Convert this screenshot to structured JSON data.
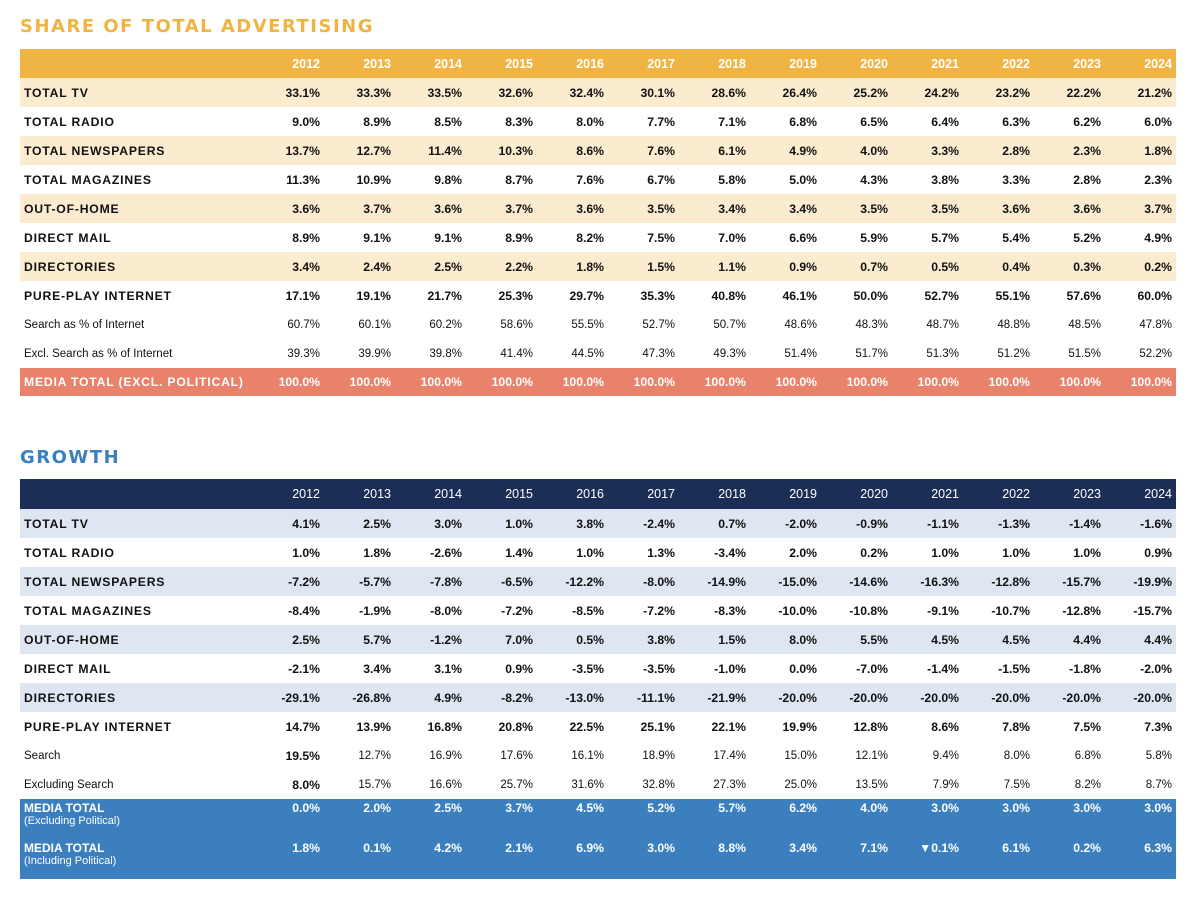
{
  "share": {
    "title": "SHARE OF TOTAL ADVERTISING",
    "years": [
      "2012",
      "2013",
      "2014",
      "2015",
      "2016",
      "2017",
      "2018",
      "2019",
      "2020",
      "2021",
      "2022",
      "2023",
      "2024"
    ],
    "rows": [
      {
        "label": "TOTAL TV",
        "values": [
          "33.1%",
          "33.3%",
          "33.5%",
          "32.6%",
          "32.4%",
          "30.1%",
          "28.6%",
          "26.4%",
          "25.2%",
          "24.2%",
          "23.2%",
          "22.2%",
          "21.2%"
        ]
      },
      {
        "label": "TOTAL RADIO",
        "values": [
          "9.0%",
          "8.9%",
          "8.5%",
          "8.3%",
          "8.0%",
          "7.7%",
          "7.1%",
          "6.8%",
          "6.5%",
          "6.4%",
          "6.3%",
          "6.2%",
          "6.0%"
        ]
      },
      {
        "label": "TOTAL NEWSPAPERS",
        "values": [
          "13.7%",
          "12.7%",
          "11.4%",
          "10.3%",
          "8.6%",
          "7.6%",
          "6.1%",
          "4.9%",
          "4.0%",
          "3.3%",
          "2.8%",
          "2.3%",
          "1.8%"
        ]
      },
      {
        "label": "TOTAL MAGAZINES",
        "values": [
          "11.3%",
          "10.9%",
          "9.8%",
          "8.7%",
          "7.6%",
          "6.7%",
          "5.8%",
          "5.0%",
          "4.3%",
          "3.8%",
          "3.3%",
          "2.8%",
          "2.3%"
        ]
      },
      {
        "label": "OUT-OF-HOME",
        "values": [
          "3.6%",
          "3.7%",
          "3.6%",
          "3.7%",
          "3.6%",
          "3.5%",
          "3.4%",
          "3.4%",
          "3.5%",
          "3.5%",
          "3.6%",
          "3.6%",
          "3.7%"
        ]
      },
      {
        "label": "DIRECT MAIL",
        "values": [
          "8.9%",
          "9.1%",
          "9.1%",
          "8.9%",
          "8.2%",
          "7.5%",
          "7.0%",
          "6.6%",
          "5.9%",
          "5.7%",
          "5.4%",
          "5.2%",
          "4.9%"
        ]
      },
      {
        "label": "DIRECTORIES",
        "values": [
          "3.4%",
          "2.4%",
          "2.5%",
          "2.2%",
          "1.8%",
          "1.5%",
          "1.1%",
          "0.9%",
          "0.7%",
          "0.5%",
          "0.4%",
          "0.3%",
          "0.2%"
        ]
      },
      {
        "label": "PURE-PLAY INTERNET",
        "values": [
          "17.1%",
          "19.1%",
          "21.7%",
          "25.3%",
          "29.7%",
          "35.3%",
          "40.8%",
          "46.1%",
          "50.0%",
          "52.7%",
          "55.1%",
          "57.6%",
          "60.0%"
        ]
      },
      {
        "label": "Search as % of Internet",
        "values": [
          "60.7%",
          "60.1%",
          "60.2%",
          "58.6%",
          "55.5%",
          "52.7%",
          "50.7%",
          "48.6%",
          "48.3%",
          "48.7%",
          "48.8%",
          "48.5%",
          "47.8%"
        ]
      },
      {
        "label": "Excl. Search as % of Internet",
        "values": [
          "39.3%",
          "39.9%",
          "39.8%",
          "41.4%",
          "44.5%",
          "47.3%",
          "49.3%",
          "51.4%",
          "51.7%",
          "51.3%",
          "51.2%",
          "51.5%",
          "52.2%"
        ]
      }
    ],
    "total": {
      "label": "MEDIA TOTAL (EXCL. POLITICAL)",
      "values": [
        "100.0%",
        "100.0%",
        "100.0%",
        "100.0%",
        "100.0%",
        "100.0%",
        "100.0%",
        "100.0%",
        "100.0%",
        "100.0%",
        "100.0%",
        "100.0%",
        "100.0%"
      ]
    }
  },
  "growth": {
    "title": "GROWTH",
    "years": [
      "2012",
      "2013",
      "2014",
      "2015",
      "2016",
      "2017",
      "2018",
      "2019",
      "2020",
      "2021",
      "2022",
      "2023",
      "2024"
    ],
    "rows": [
      {
        "label": "TOTAL TV",
        "values": [
          "4.1%",
          "2.5%",
          "3.0%",
          "1.0%",
          "3.8%",
          "-2.4%",
          "0.7%",
          "-2.0%",
          "-0.9%",
          "-1.1%",
          "-1.3%",
          "-1.4%",
          "-1.6%"
        ]
      },
      {
        "label": "TOTAL RADIO",
        "values": [
          "1.0%",
          "1.8%",
          "-2.6%",
          "1.4%",
          "1.0%",
          "1.3%",
          "-3.4%",
          "2.0%",
          "0.2%",
          "1.0%",
          "1.0%",
          "1.0%",
          "0.9%"
        ]
      },
      {
        "label": "TOTAL NEWSPAPERS",
        "values": [
          "-7.2%",
          "-5.7%",
          "-7.8%",
          "-6.5%",
          "-12.2%",
          "-8.0%",
          "-14.9%",
          "-15.0%",
          "-14.6%",
          "-16.3%",
          "-12.8%",
          "-15.7%",
          "-19.9%"
        ]
      },
      {
        "label": "TOTAL MAGAZINES",
        "values": [
          "-8.4%",
          "-1.9%",
          "-8.0%",
          "-7.2%",
          "-8.5%",
          "-7.2%",
          "-8.3%",
          "-10.0%",
          "-10.8%",
          "-9.1%",
          "-10.7%",
          "-12.8%",
          "-15.7%"
        ]
      },
      {
        "label": "OUT-OF-HOME",
        "values": [
          "2.5%",
          "5.7%",
          "-1.2%",
          "7.0%",
          "0.5%",
          "3.8%",
          "1.5%",
          "8.0%",
          "5.5%",
          "4.5%",
          "4.5%",
          "4.4%",
          "4.4%"
        ]
      },
      {
        "label": "DIRECT MAIL",
        "values": [
          "-2.1%",
          "3.4%",
          "3.1%",
          "0.9%",
          "-3.5%",
          "-3.5%",
          "-1.0%",
          "0.0%",
          "-7.0%",
          "-1.4%",
          "-1.5%",
          "-1.8%",
          "-2.0%"
        ]
      },
      {
        "label": "DIRECTORIES",
        "values": [
          "-29.1%",
          "-26.8%",
          "4.9%",
          "-8.2%",
          "-13.0%",
          "-11.1%",
          "-21.9%",
          "-20.0%",
          "-20.0%",
          "-20.0%",
          "-20.0%",
          "-20.0%",
          "-20.0%"
        ]
      },
      {
        "label": "PURE-PLAY INTERNET",
        "values": [
          "14.7%",
          "13.9%",
          "16.8%",
          "20.8%",
          "22.5%",
          "25.1%",
          "22.1%",
          "19.9%",
          "12.8%",
          "8.6%",
          "7.8%",
          "7.5%",
          "7.3%"
        ]
      },
      {
        "label": "Search",
        "values": [
          "19.5%",
          "12.7%",
          "16.9%",
          "17.6%",
          "16.1%",
          "18.9%",
          "17.4%",
          "15.0%",
          "12.1%",
          "9.4%",
          "8.0%",
          "6.8%",
          "5.8%"
        ]
      },
      {
        "label": "Excluding Search",
        "values": [
          "8.0%",
          "15.7%",
          "16.6%",
          "25.7%",
          "31.6%",
          "32.8%",
          "27.3%",
          "25.0%",
          "13.5%",
          "7.9%",
          "7.5%",
          "8.2%",
          "8.7%"
        ]
      }
    ],
    "totals": [
      {
        "label": "MEDIA TOTAL",
        "sublabel": "(Excluding Political)",
        "values": [
          "0.0%",
          "2.0%",
          "2.5%",
          "3.7%",
          "4.5%",
          "5.2%",
          "5.7%",
          "6.2%",
          "4.0%",
          "3.0%",
          "3.0%",
          "3.0%",
          "3.0%"
        ]
      },
      {
        "label": "MEDIA TOTAL",
        "sublabel": "(Including Political)",
        "values": [
          "1.8%",
          "0.1%",
          "4.2%",
          "2.1%",
          "6.9%",
          "3.0%",
          "8.8%",
          "3.4%",
          "7.1%",
          "▼0.1%",
          "6.1%",
          "0.2%",
          "6.3%"
        ]
      }
    ]
  },
  "chart_data": [
    {
      "type": "table",
      "title": "SHARE OF TOTAL ADVERTISING",
      "columns": [
        "2012",
        "2013",
        "2014",
        "2015",
        "2016",
        "2017",
        "2018",
        "2019",
        "2020",
        "2021",
        "2022",
        "2023",
        "2024"
      ],
      "unit": "%",
      "series": [
        {
          "name": "TOTAL TV",
          "values": [
            33.1,
            33.3,
            33.5,
            32.6,
            32.4,
            30.1,
            28.6,
            26.4,
            25.2,
            24.2,
            23.2,
            22.2,
            21.2
          ]
        },
        {
          "name": "TOTAL RADIO",
          "values": [
            9.0,
            8.9,
            8.5,
            8.3,
            8.0,
            7.7,
            7.1,
            6.8,
            6.5,
            6.4,
            6.3,
            6.2,
            6.0
          ]
        },
        {
          "name": "TOTAL NEWSPAPERS",
          "values": [
            13.7,
            12.7,
            11.4,
            10.3,
            8.6,
            7.6,
            6.1,
            4.9,
            4.0,
            3.3,
            2.8,
            2.3,
            1.8
          ]
        },
        {
          "name": "TOTAL MAGAZINES",
          "values": [
            11.3,
            10.9,
            9.8,
            8.7,
            7.6,
            6.7,
            5.8,
            5.0,
            4.3,
            3.8,
            3.3,
            2.8,
            2.3
          ]
        },
        {
          "name": "OUT-OF-HOME",
          "values": [
            3.6,
            3.7,
            3.6,
            3.7,
            3.6,
            3.5,
            3.4,
            3.4,
            3.5,
            3.5,
            3.6,
            3.6,
            3.7
          ]
        },
        {
          "name": "DIRECT MAIL",
          "values": [
            8.9,
            9.1,
            9.1,
            8.9,
            8.2,
            7.5,
            7.0,
            6.6,
            5.9,
            5.7,
            5.4,
            5.2,
            4.9
          ]
        },
        {
          "name": "DIRECTORIES",
          "values": [
            3.4,
            2.4,
            2.5,
            2.2,
            1.8,
            1.5,
            1.1,
            0.9,
            0.7,
            0.5,
            0.4,
            0.3,
            0.2
          ]
        },
        {
          "name": "PURE-PLAY INTERNET",
          "values": [
            17.1,
            19.1,
            21.7,
            25.3,
            29.7,
            35.3,
            40.8,
            46.1,
            50.0,
            52.7,
            55.1,
            57.6,
            60.0
          ]
        },
        {
          "name": "Search as % of Internet",
          "values": [
            60.7,
            60.1,
            60.2,
            58.6,
            55.5,
            52.7,
            50.7,
            48.6,
            48.3,
            48.7,
            48.8,
            48.5,
            47.8
          ]
        },
        {
          "name": "Excl. Search as % of Internet",
          "values": [
            39.3,
            39.9,
            39.8,
            41.4,
            44.5,
            47.3,
            49.3,
            51.4,
            51.7,
            51.3,
            51.2,
            51.5,
            52.2
          ]
        },
        {
          "name": "MEDIA TOTAL (EXCL. POLITICAL)",
          "values": [
            100.0,
            100.0,
            100.0,
            100.0,
            100.0,
            100.0,
            100.0,
            100.0,
            100.0,
            100.0,
            100.0,
            100.0,
            100.0
          ]
        }
      ]
    },
    {
      "type": "table",
      "title": "GROWTH",
      "columns": [
        "2012",
        "2013",
        "2014",
        "2015",
        "2016",
        "2017",
        "2018",
        "2019",
        "2020",
        "2021",
        "2022",
        "2023",
        "2024"
      ],
      "unit": "%",
      "series": [
        {
          "name": "TOTAL TV",
          "values": [
            4.1,
            2.5,
            3.0,
            1.0,
            3.8,
            -2.4,
            0.7,
            -2.0,
            -0.9,
            -1.1,
            -1.3,
            -1.4,
            -1.6
          ]
        },
        {
          "name": "TOTAL RADIO",
          "values": [
            1.0,
            1.8,
            -2.6,
            1.4,
            1.0,
            1.3,
            -3.4,
            2.0,
            0.2,
            1.0,
            1.0,
            1.0,
            0.9
          ]
        },
        {
          "name": "TOTAL NEWSPAPERS",
          "values": [
            -7.2,
            -5.7,
            -7.8,
            -6.5,
            -12.2,
            -8.0,
            -14.9,
            -15.0,
            -14.6,
            -16.3,
            -12.8,
            -15.7,
            -19.9
          ]
        },
        {
          "name": "TOTAL MAGAZINES",
          "values": [
            -8.4,
            -1.9,
            -8.0,
            -7.2,
            -8.5,
            -7.2,
            -8.3,
            -10.0,
            -10.8,
            -9.1,
            -10.7,
            -12.8,
            -15.7
          ]
        },
        {
          "name": "OUT-OF-HOME",
          "values": [
            2.5,
            5.7,
            -1.2,
            7.0,
            0.5,
            3.8,
            1.5,
            8.0,
            5.5,
            4.5,
            4.5,
            4.4,
            4.4
          ]
        },
        {
          "name": "DIRECT MAIL",
          "values": [
            -2.1,
            3.4,
            3.1,
            0.9,
            -3.5,
            -3.5,
            -1.0,
            0.0,
            -7.0,
            -1.4,
            -1.5,
            -1.8,
            -2.0
          ]
        },
        {
          "name": "DIRECTORIES",
          "values": [
            -29.1,
            -26.8,
            4.9,
            -8.2,
            -13.0,
            -11.1,
            -21.9,
            -20.0,
            -20.0,
            -20.0,
            -20.0,
            -20.0,
            -20.0
          ]
        },
        {
          "name": "PURE-PLAY INTERNET",
          "values": [
            14.7,
            13.9,
            16.8,
            20.8,
            22.5,
            25.1,
            22.1,
            19.9,
            12.8,
            8.6,
            7.8,
            7.5,
            7.3
          ]
        },
        {
          "name": "Search",
          "values": [
            19.5,
            12.7,
            16.9,
            17.6,
            16.1,
            18.9,
            17.4,
            15.0,
            12.1,
            9.4,
            8.0,
            6.8,
            5.8
          ]
        },
        {
          "name": "Excluding Search",
          "values": [
            8.0,
            15.7,
            16.6,
            25.7,
            31.6,
            32.8,
            27.3,
            25.0,
            13.5,
            7.9,
            7.5,
            8.2,
            8.7
          ]
        },
        {
          "name": "MEDIA TOTAL (Excluding Political)",
          "values": [
            0.0,
            2.0,
            2.5,
            3.7,
            4.5,
            5.2,
            5.7,
            6.2,
            4.0,
            3.0,
            3.0,
            3.0,
            3.0
          ]
        },
        {
          "name": "MEDIA TOTAL (Including Political)",
          "values": [
            1.8,
            0.1,
            4.2,
            2.1,
            6.9,
            3.0,
            8.8,
            3.4,
            7.1,
            -0.1,
            6.1,
            0.2,
            6.3
          ]
        }
      ]
    }
  ]
}
